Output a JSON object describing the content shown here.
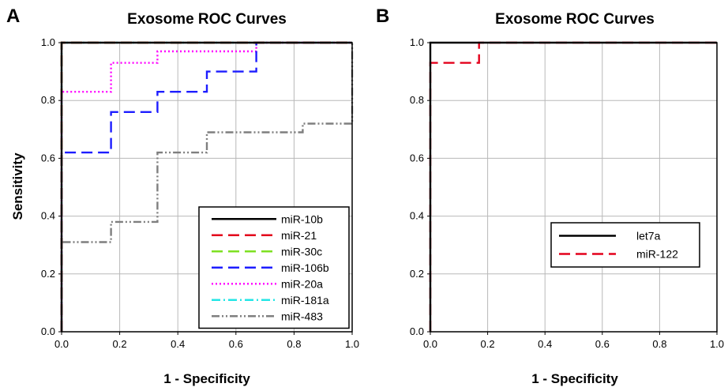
{
  "chart_data": [
    {
      "panel_label": "A",
      "type": "line",
      "title": "Exosome ROC Curves",
      "xlabel": "1 - Specificity",
      "ylabel": "Sensitivity",
      "xlim": [
        0,
        1
      ],
      "ylim": [
        0,
        1
      ],
      "xticks": [
        "0.0",
        "0.2",
        "0.4",
        "0.6",
        "0.8",
        "1.0"
      ],
      "yticks": [
        "0.0",
        "0.2",
        "0.4",
        "0.6",
        "0.8",
        "1.0"
      ],
      "grid": true,
      "legend_position": "bottom-right",
      "series": [
        {
          "name": "miR-10b",
          "color": "#000000",
          "dash": "solid",
          "x": [
            0,
            0,
            1
          ],
          "y": [
            0,
            1,
            1
          ]
        },
        {
          "name": "miR-21",
          "color": "#e3001b",
          "dash": "long-dash",
          "x": [
            0,
            0,
            1
          ],
          "y": [
            0,
            1,
            1
          ]
        },
        {
          "name": "miR-30c",
          "color": "#7ee022",
          "dash": "long-dash",
          "x": [
            0,
            0,
            1
          ],
          "y": [
            0,
            1,
            1
          ]
        },
        {
          "name": "miR-106b",
          "color": "#1d1dff",
          "dash": "long-dash",
          "x": [
            0,
            0,
            0.17,
            0.17,
            0.33,
            0.33,
            0.5,
            0.5,
            0.67,
            0.67,
            1.0
          ],
          "y": [
            0,
            0.62,
            0.62,
            0.76,
            0.76,
            0.83,
            0.83,
            0.9,
            0.9,
            1.0,
            1.0
          ]
        },
        {
          "name": "miR-20a",
          "color": "#ff00ff",
          "dash": "dotted",
          "x": [
            0,
            0,
            0.17,
            0.17,
            0.33,
            0.33,
            0.67,
            0.67,
            1.0
          ],
          "y": [
            0,
            0.83,
            0.83,
            0.93,
            0.93,
            0.97,
            0.97,
            1.0,
            1.0
          ]
        },
        {
          "name": "miR-181a",
          "color": "#24e6e6",
          "dash": "dash-dot",
          "x": [
            0,
            0,
            1
          ],
          "y": [
            0,
            1,
            1
          ]
        },
        {
          "name": "miR-483",
          "color": "#7f7f7f",
          "dash": "dash-dot-dot",
          "x": [
            0,
            0,
            0.17,
            0.17,
            0.33,
            0.33,
            0.5,
            0.5,
            0.83,
            0.83,
            1.0,
            1.0
          ],
          "y": [
            0,
            0.31,
            0.31,
            0.38,
            0.38,
            0.62,
            0.62,
            0.69,
            0.69,
            0.72,
            0.72,
            1.0
          ]
        }
      ]
    },
    {
      "panel_label": "B",
      "type": "line",
      "title": "Exosome ROC Curves",
      "xlabel": "1 - Specificity",
      "ylabel": "",
      "xlim": [
        0,
        1
      ],
      "ylim": [
        0,
        1
      ],
      "xticks": [
        "0.0",
        "0.2",
        "0.4",
        "0.6",
        "0.8",
        "1.0"
      ],
      "yticks": [
        "0.0",
        "0.2",
        "0.4",
        "0.6",
        "0.8",
        "1.0"
      ],
      "grid": true,
      "legend_position": "middle-right",
      "series": [
        {
          "name": "let7a",
          "color": "#000000",
          "dash": "solid",
          "x": [
            0,
            0,
            1
          ],
          "y": [
            0,
            1,
            1
          ]
        },
        {
          "name": "miR-122",
          "color": "#e3001b",
          "dash": "long-dash",
          "x": [
            0,
            0,
            0.17,
            0.17,
            1.0
          ],
          "y": [
            0,
            0.93,
            0.93,
            1.0,
            1.0
          ]
        }
      ]
    }
  ]
}
